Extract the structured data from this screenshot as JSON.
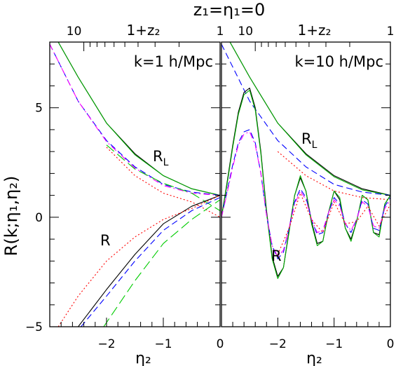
{
  "figure": {
    "top_title": "z₁=η₁=0",
    "ylabel": "R(k;η₁,η₂)",
    "xlabel": "η₂",
    "top_axis_label": "1+z₂"
  },
  "chart_data": [
    {
      "type": "line",
      "panel": "left",
      "annotation": "k=1 h/Mpc",
      "xlabel": "η₂",
      "ylabel": "R(k;η₁,η₂)",
      "top_xlabel": "1+z₂",
      "xlim": [
        -3,
        0
      ],
      "ylim": [
        -5,
        8
      ],
      "x_ticks": [
        -2,
        -1,
        0
      ],
      "y_ticks": [
        -5,
        0,
        5
      ],
      "top_ticks": [
        "10",
        "1"
      ],
      "curve_labels": [
        "R_L",
        "R"
      ],
      "series": [
        {
          "group": "R_L",
          "style": "solid",
          "color": "#000000",
          "x": [
            -2.85,
            -2.5,
            -2.0,
            -1.5,
            -1.0,
            -0.5,
            0.0
          ],
          "y": [
            8.0,
            6.4,
            4.3,
            2.9,
            1.9,
            1.3,
            1.0
          ]
        },
        {
          "group": "R_L",
          "style": "solid",
          "color": "#00aa00",
          "x": [
            -2.85,
            -2.5,
            -2.0,
            -1.5,
            -1.0,
            -0.5,
            0.0
          ],
          "y": [
            8.0,
            6.4,
            4.3,
            2.85,
            1.9,
            1.3,
            1.0
          ]
        },
        {
          "group": "R_L",
          "style": "dashed",
          "color": "#0000ff",
          "x": [
            -3.0,
            -2.5,
            -2.0,
            -1.5,
            -1.0,
            -0.5,
            0.0
          ],
          "y": [
            7.9,
            5.3,
            3.5,
            2.3,
            1.5,
            1.15,
            1.0
          ]
        },
        {
          "group": "R_L",
          "style": "dashdot",
          "color": "#ff00ff",
          "x": [
            -3.0,
            -2.5,
            -2.0,
            -1.5,
            -1.0,
            -0.5,
            0.0
          ],
          "y": [
            7.9,
            5.3,
            3.45,
            2.25,
            1.45,
            1.1,
            1.0
          ]
        },
        {
          "group": "R_L",
          "style": "longdash",
          "color": "#00cc00",
          "x": [
            -2.0,
            -1.5,
            -1.0,
            -0.5,
            0.0
          ],
          "y": [
            3.3,
            2.2,
            1.55,
            1.1,
            0.3
          ]
        },
        {
          "group": "R_L",
          "style": "dotted",
          "color": "#ff0000",
          "x": [
            -2.0,
            -1.5,
            -1.0,
            -0.5,
            0.0
          ],
          "y": [
            3.2,
            1.9,
            1.1,
            0.7,
            0.0
          ]
        },
        {
          "group": "R",
          "style": "solid",
          "color": "#000000",
          "x": [
            -2.5,
            -2.0,
            -1.5,
            -1.0,
            -0.5,
            0.0
          ],
          "y": [
            -5.0,
            -3.3,
            -1.7,
            -0.3,
            0.5,
            1.0
          ]
        },
        {
          "group": "R",
          "style": "dashed",
          "color": "#0000ff",
          "x": [
            -2.45,
            -2.0,
            -1.5,
            -1.0,
            -0.5,
            0.0
          ],
          "y": [
            -5.0,
            -3.6,
            -2.0,
            -0.6,
            0.3,
            0.9
          ]
        },
        {
          "group": "R",
          "style": "dotted",
          "color": "#ff0000",
          "x": [
            -2.85,
            -2.5,
            -2.0,
            -1.5,
            -1.0,
            -0.5,
            0.0
          ],
          "y": [
            -5.0,
            -3.6,
            -2.0,
            -0.9,
            -0.1,
            0.4,
            1.0
          ]
        },
        {
          "group": "R",
          "style": "longdash",
          "color": "#00cc00",
          "x": [
            -2.05,
            -1.5,
            -1.0,
            -0.5,
            0.0
          ],
          "y": [
            -5.0,
            -2.9,
            -1.2,
            -0.1,
            0.8
          ]
        }
      ]
    },
    {
      "type": "line",
      "panel": "right",
      "annotation": "k=10 h/Mpc",
      "xlabel": "η₂",
      "top_xlabel": "1+z₂",
      "xlim": [
        -3,
        0
      ],
      "ylim": [
        -5,
        8
      ],
      "x_ticks": [
        -2,
        -1,
        0
      ],
      "top_ticks": [
        "10",
        "1"
      ],
      "curve_labels": [
        "R_L",
        "R"
      ],
      "series": [
        {
          "group": "R_L",
          "style": "solid",
          "color": "#000000",
          "x": [
            -2.85,
            -2.5,
            -2.0,
            -1.5,
            -1.0,
            -0.5,
            0.0
          ],
          "y": [
            8.0,
            6.4,
            4.3,
            2.9,
            1.9,
            1.3,
            1.0
          ]
        },
        {
          "group": "R_L",
          "style": "solid",
          "color": "#00aa00",
          "x": [
            -2.85,
            -2.5,
            -2.0,
            -1.5,
            -1.0,
            -0.5,
            0.0
          ],
          "y": [
            8.0,
            6.4,
            4.3,
            2.85,
            1.85,
            1.25,
            1.0
          ]
        },
        {
          "group": "R_L",
          "style": "dashed",
          "color": "#0000ff",
          "x": [
            -3.0,
            -2.5,
            -2.0,
            -1.5,
            -1.0,
            -0.5,
            0.0
          ],
          "y": [
            7.9,
            5.3,
            3.5,
            2.3,
            1.5,
            1.15,
            1.0
          ]
        },
        {
          "group": "R_L",
          "style": "dotted",
          "color": "#ff0000",
          "x": [
            -2.0,
            -1.5,
            -1.0,
            -0.5,
            0.0
          ],
          "y": [
            3.0,
            1.9,
            1.2,
            0.9,
            0.8
          ]
        },
        {
          "group": "R",
          "style": "solid",
          "color": "#000000",
          "x": [
            -3.0,
            -2.9,
            -2.8,
            -2.7,
            -2.6,
            -2.5,
            -2.4,
            -2.3,
            -2.2,
            -2.1,
            -2.0,
            -1.9,
            -1.8,
            -1.7,
            -1.6,
            -1.5,
            -1.4,
            -1.3,
            -1.2,
            -1.1,
            -1.0,
            -0.9,
            -0.8,
            -0.7,
            -0.6,
            -0.5,
            -0.4,
            -0.3,
            -0.2,
            -0.1,
            0.0
          ],
          "y": [
            0.0,
            1.6,
            3.3,
            4.8,
            5.7,
            5.9,
            5.0,
            3.0,
            0.3,
            -1.8,
            -2.7,
            -2.3,
            -0.6,
            1.0,
            1.8,
            1.2,
            -0.2,
            -1.2,
            -1.1,
            0.2,
            1.2,
            0.8,
            -0.5,
            -1.0,
            -0.2,
            1.0,
            0.8,
            -0.7,
            -0.8,
            0.6,
            1.0
          ]
        },
        {
          "group": "R",
          "style": "solid",
          "color": "#00aa00",
          "x": [
            -3.0,
            -2.9,
            -2.8,
            -2.7,
            -2.6,
            -2.5,
            -2.4,
            -2.3,
            -2.2,
            -2.1,
            -2.0,
            -1.9,
            -1.8,
            -1.7,
            -1.6,
            -1.5,
            -1.4,
            -1.3,
            -1.2,
            -1.1,
            -1.0,
            -0.9,
            -0.8,
            -0.7,
            -0.6,
            -0.5,
            -0.4,
            -0.3,
            -0.2,
            -0.1,
            0.0
          ],
          "y": [
            0.0,
            1.5,
            3.2,
            4.7,
            5.6,
            5.8,
            4.9,
            2.9,
            0.2,
            -1.9,
            -2.8,
            -2.3,
            -0.7,
            1.0,
            1.9,
            1.2,
            -0.3,
            -1.3,
            -1.1,
            0.2,
            1.2,
            0.9,
            -0.5,
            -1.1,
            -0.2,
            1.0,
            0.8,
            -0.7,
            -0.9,
            0.6,
            1.0
          ]
        },
        {
          "group": "R",
          "style": "dashed",
          "color": "#0000ff",
          "x": [
            -3.0,
            -2.9,
            -2.8,
            -2.7,
            -2.6,
            -2.5,
            -2.4,
            -2.3,
            -2.2,
            -2.1,
            -2.0,
            -1.9,
            -1.8,
            -1.7,
            -1.6,
            -1.5,
            -1.4,
            -1.3,
            -1.2,
            -1.1,
            -1.0,
            -0.9,
            -0.8,
            -0.7,
            -0.6,
            -0.5,
            -0.4,
            -0.3,
            -0.2,
            -0.1,
            0.0
          ],
          "y": [
            0.0,
            1.2,
            2.4,
            3.4,
            3.9,
            4.0,
            3.4,
            2.0,
            0.1,
            -1.3,
            -1.9,
            -1.6,
            -0.5,
            0.7,
            1.3,
            0.9,
            -0.1,
            -0.8,
            -0.7,
            0.2,
            0.9,
            0.6,
            -0.3,
            -0.7,
            -0.1,
            0.8,
            0.6,
            -0.5,
            -0.6,
            0.5,
            0.9
          ]
        },
        {
          "group": "R",
          "style": "dashdot",
          "color": "#ff00ff",
          "x": [
            -3.0,
            -2.9,
            -2.8,
            -2.7,
            -2.6,
            -2.5,
            -2.4,
            -2.3,
            -2.2,
            -2.1,
            -2.0,
            -1.9,
            -1.8,
            -1.7,
            -1.6,
            -1.5,
            -1.4,
            -1.3,
            -1.2,
            -1.1,
            -1.0,
            -0.9,
            -0.8,
            -0.7,
            -0.6,
            -0.5,
            -0.4,
            -0.3,
            -0.2,
            -0.1,
            0.0
          ],
          "y": [
            0.0,
            1.1,
            2.3,
            3.3,
            3.8,
            3.9,
            3.3,
            2.0,
            0.1,
            -1.3,
            -1.8,
            -1.5,
            -0.5,
            0.6,
            1.2,
            0.8,
            -0.1,
            -0.7,
            -0.6,
            0.2,
            0.8,
            0.5,
            -0.3,
            -0.6,
            -0.1,
            0.7,
            0.5,
            -0.4,
            -0.5,
            0.4,
            0.8
          ]
        },
        {
          "group": "R",
          "style": "dotted",
          "color": "#ff0000",
          "x": [
            -2.0,
            -1.8,
            -1.6,
            -1.4,
            -1.2,
            -1.0,
            -0.8,
            -0.6,
            -0.4,
            -0.2,
            0.0
          ],
          "y": [
            -1.7,
            -0.5,
            1.1,
            -0.1,
            -0.7,
            0.7,
            -0.3,
            -0.2,
            0.5,
            -0.4,
            0.6
          ]
        }
      ]
    }
  ]
}
